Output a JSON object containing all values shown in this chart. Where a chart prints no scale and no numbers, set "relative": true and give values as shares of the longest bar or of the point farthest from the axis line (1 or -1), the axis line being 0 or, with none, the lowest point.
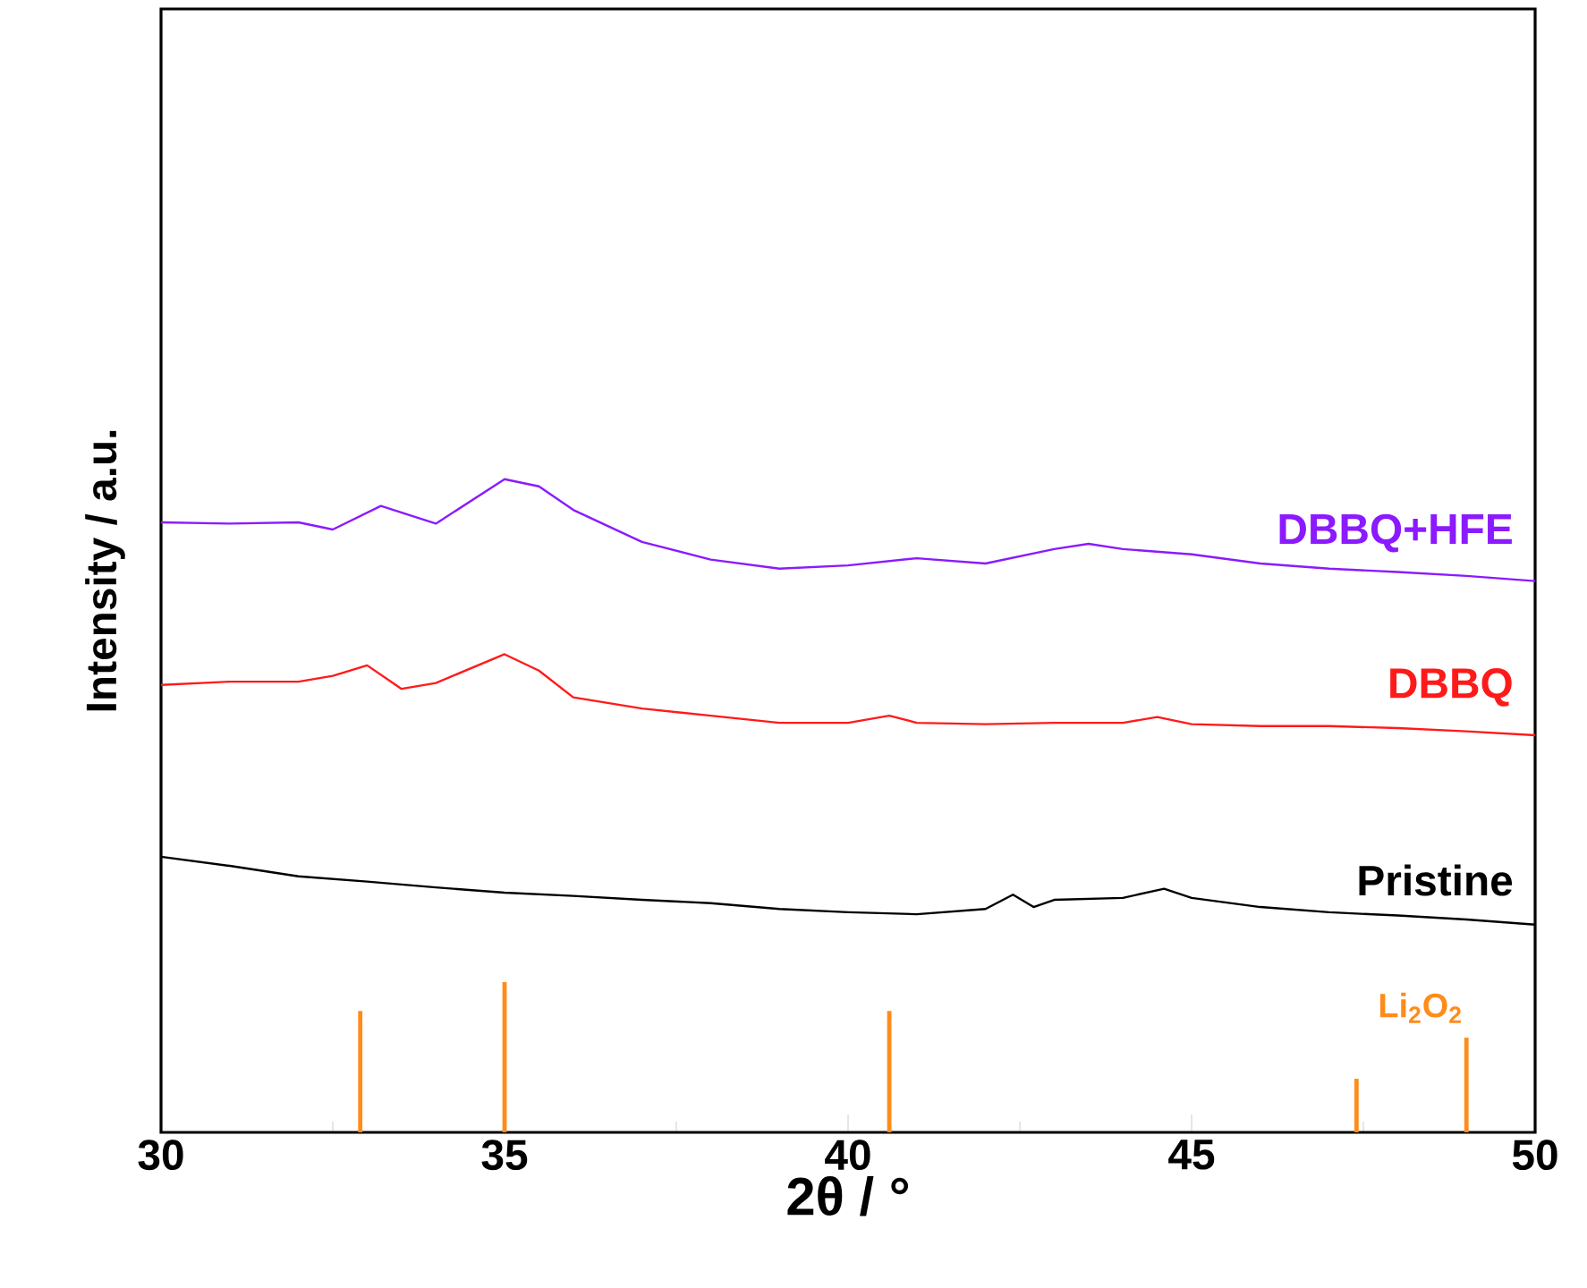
{
  "chart_data": {
    "type": "line",
    "relative": true,
    "xlabel": "2θ / °",
    "ylabel": "Intensity / a.u.",
    "xlim": [
      30,
      50
    ],
    "xticks": [
      30,
      35,
      40,
      45,
      50
    ],
    "legend": false,
    "grid": false,
    "series": [
      {
        "name": "DBBQ+HFE",
        "color": "#8b1aff",
        "x": [
          30,
          31,
          32,
          32.5,
          33.2,
          34,
          35,
          35.5,
          36,
          37,
          38,
          39,
          40,
          41,
          42,
          43,
          43.5,
          44,
          45,
          46,
          47,
          48,
          49,
          50
        ],
        "values": [
          0.934,
          0.932,
          0.934,
          0.923,
          0.959,
          0.932,
          1.0,
          0.989,
          0.953,
          0.904,
          0.877,
          0.863,
          0.868,
          0.879,
          0.871,
          0.893,
          0.901,
          0.893,
          0.885,
          0.871,
          0.863,
          0.858,
          0.852,
          0.844
        ]
      },
      {
        "name": "DBBQ",
        "color": "#ff1a1a",
        "x": [
          30,
          31,
          32,
          32.5,
          33,
          33.5,
          34,
          35,
          35.5,
          36,
          37,
          38,
          39,
          40,
          40.6,
          41,
          42,
          43,
          44,
          44.5,
          45,
          46,
          47,
          48,
          49,
          50
        ],
        "values": [
          0.685,
          0.69,
          0.69,
          0.699,
          0.715,
          0.679,
          0.688,
          0.732,
          0.707,
          0.666,
          0.649,
          0.638,
          0.627,
          0.627,
          0.638,
          0.627,
          0.625,
          0.627,
          0.627,
          0.636,
          0.625,
          0.622,
          0.622,
          0.619,
          0.614,
          0.608
        ]
      },
      {
        "name": "Pristine",
        "color": "#000000",
        "x": [
          30,
          31,
          32,
          33,
          34,
          35,
          36,
          37,
          38,
          39,
          40,
          41,
          42,
          42.4,
          42.7,
          43,
          44,
          44.6,
          45,
          46,
          47,
          48,
          49,
          50
        ],
        "values": [
          0.422,
          0.408,
          0.392,
          0.384,
          0.375,
          0.367,
          0.362,
          0.356,
          0.351,
          0.342,
          0.337,
          0.334,
          0.342,
          0.364,
          0.345,
          0.356,
          0.359,
          0.373,
          0.359,
          0.345,
          0.337,
          0.332,
          0.326,
          0.318
        ]
      },
      {
        "name": "Li$_{2}$O$_{2}$",
        "type": "bar",
        "color": "#ff8c1a",
        "x": [
          32.9,
          35.0,
          40.6,
          47.4,
          49.0
        ],
        "values": [
          0.186,
          0.23,
          0.186,
          0.082,
          0.145
        ]
      }
    ]
  }
}
